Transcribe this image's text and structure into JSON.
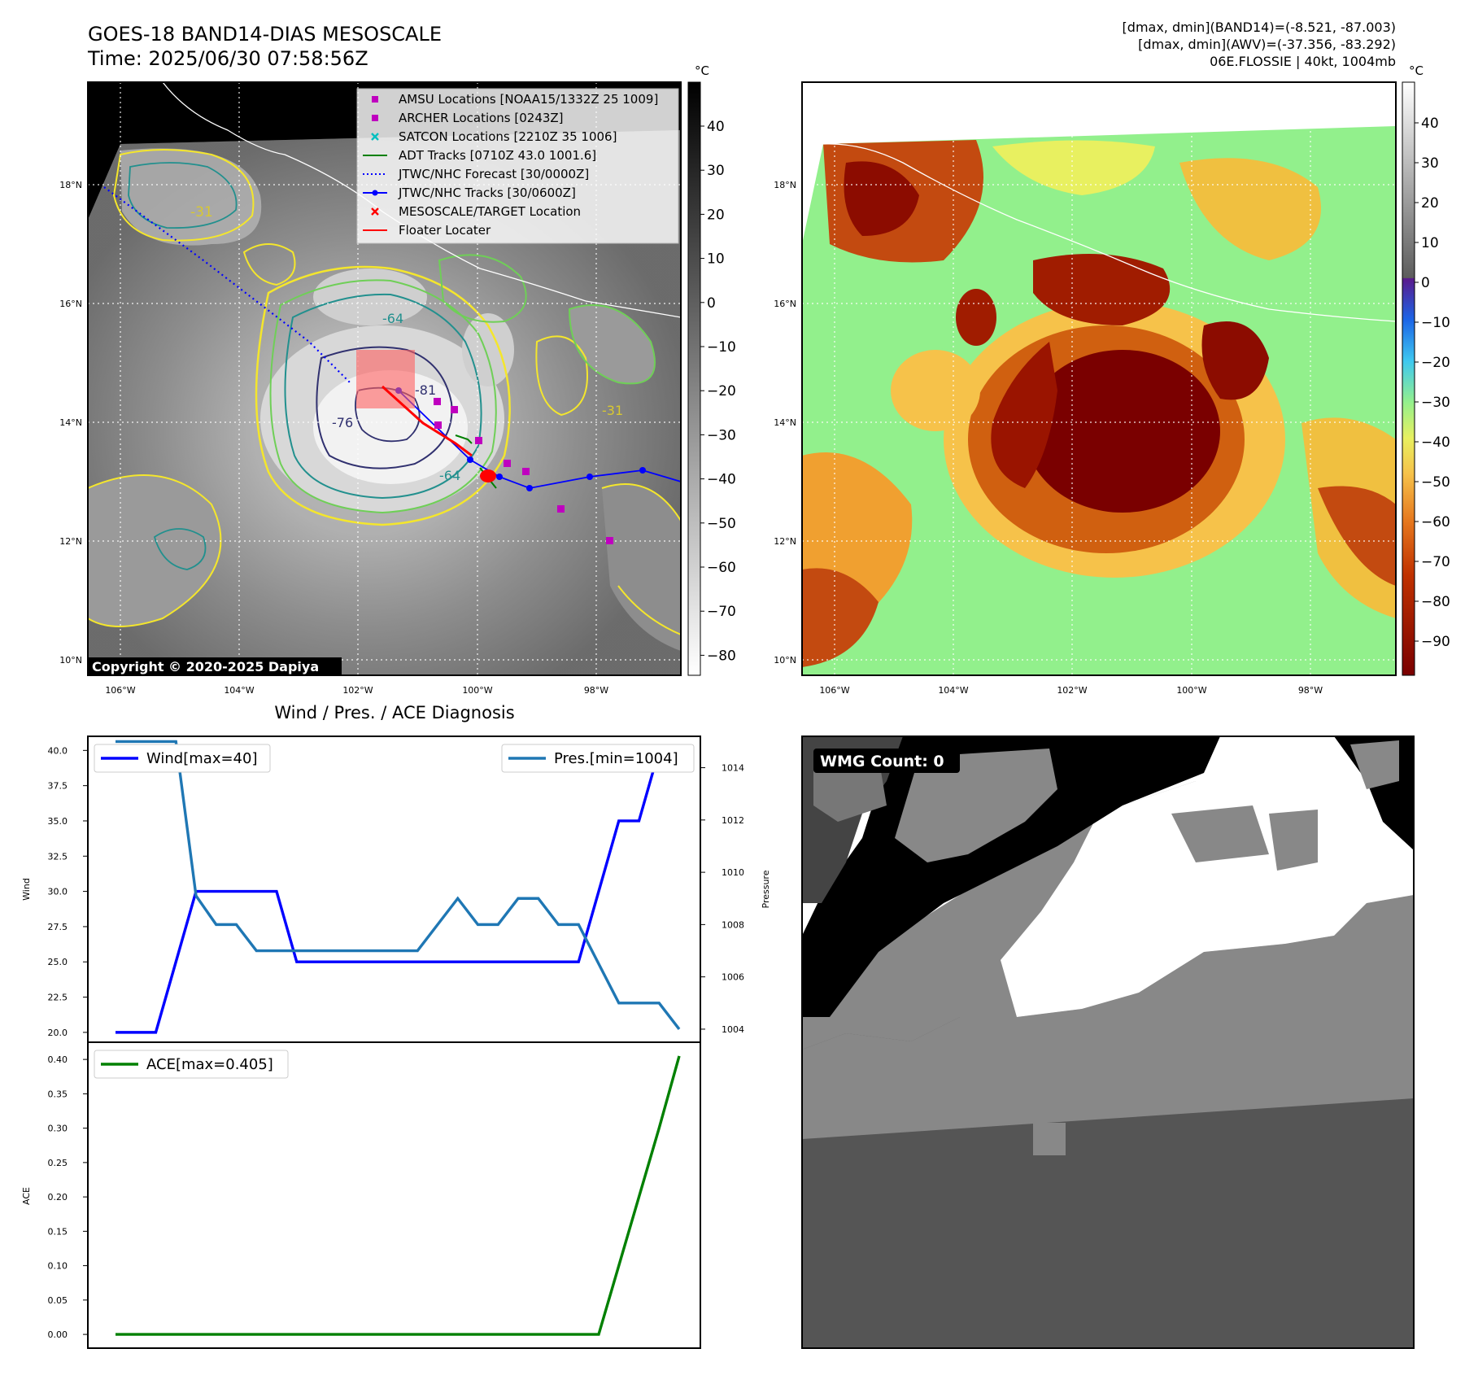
{
  "header": {
    "title_line1": "GOES-18 BAND14-DIAS MESOSCALE",
    "title_line2": "Time: 2025/06/30 07:58:56Z",
    "info_line1": "[dmax, dmin](BAND14)=(-8.521, -87.003)",
    "info_line2": "[dmax, dmin](AWV)=(-37.356, -83.292)",
    "info_line3": "06E.FLOSSIE | 40kt, 1004mb"
  },
  "colors": {
    "wind": "#0000ff",
    "pressure": "#1f77b4",
    "ace": "#008000",
    "amsu": "#bf00bf",
    "satcon": "#00bfbf",
    "adt": "#008000",
    "track": "#0000ff",
    "floater": "#ff0000",
    "contour_yellow": "#f4e62c",
    "contour_green": "#6fcf57",
    "contour_teal": "#22908e",
    "contour_navy": "#30306f"
  },
  "map_labels": {
    "lat": [
      "18°N",
      "16°N",
      "14°N",
      "12°N",
      "10°N"
    ],
    "lon": [
      "106°W",
      "104°W",
      "102°W",
      "100°W",
      "98°W"
    ],
    "copyright": "Copyright © 2020-2025 Dapiya",
    "contour_labels": [
      "-31",
      "-64",
      "-76",
      "-81",
      "-31",
      "-64"
    ]
  },
  "legend": [
    {
      "label": "AMSU Locations [NOAA15/1332Z 25 1009]",
      "marker": "square",
      "color": "#bf00bf"
    },
    {
      "label": "ARCHER Locations [0243Z]",
      "marker": "square",
      "color": "#bf00bf"
    },
    {
      "label": "SATCON Locations [2210Z 35 1006]",
      "marker": "x",
      "color": "#00bfbf"
    },
    {
      "label": "ADT Tracks [0710Z 43.0 1001.6]",
      "marker": "line",
      "color": "#008000"
    },
    {
      "label": "JTWC/NHC Forecast [30/0000Z]",
      "marker": "dotted",
      "color": "#0000ff"
    },
    {
      "label": "JTWC/NHC Tracks [30/0600Z]",
      "marker": "dotline",
      "color": "#0000ff"
    },
    {
      "label": "MESOSCALE/TARGET Location",
      "marker": "x",
      "color": "#ff0000"
    },
    {
      "label": "Floater Locater",
      "marker": "line",
      "color": "#ff0000"
    }
  ],
  "colorbars": {
    "gray": {
      "unit": "°C",
      "ticks": [
        "40",
        "30",
        "20",
        "10",
        "0",
        "−10",
        "−20",
        "−30",
        "−40",
        "−50",
        "−60",
        "−70",
        "−80"
      ]
    },
    "color": {
      "unit": "°C",
      "ticks": [
        "40",
        "30",
        "20",
        "10",
        "0",
        "−10",
        "−20",
        "−30",
        "−40",
        "−50",
        "−60",
        "−70",
        "−80",
        "−90"
      ]
    }
  },
  "wmg": {
    "label": "WMG Count: 0"
  },
  "chart_data": [
    {
      "type": "line",
      "title": "Wind / Pres. / ACE Diagnosis",
      "ylabel": "Wind",
      "ylabel_right": "Pressure",
      "x": [
        0,
        1,
        2,
        3,
        4,
        5,
        6,
        7,
        8,
        9,
        10,
        11,
        12,
        13,
        14,
        15,
        16,
        17,
        18,
        19,
        20,
        21,
        22,
        23,
        24,
        25,
        26,
        27,
        28
      ],
      "ylim": [
        19.3,
        41.0
      ],
      "ylim_right": [
        1003.5,
        1015.2
      ],
      "yticks": [
        "20.0",
        "22.5",
        "25.0",
        "27.5",
        "30.0",
        "32.5",
        "35.0",
        "37.5",
        "40.0"
      ],
      "yticks_right": [
        "1004",
        "1006",
        "1008",
        "1010",
        "1012",
        "1014"
      ],
      "series": [
        {
          "name": "Wind[max=40]",
          "axis": "left",
          "values": [
            20,
            20,
            20,
            25,
            30,
            30,
            30,
            30,
            30,
            25,
            25,
            25,
            25,
            25,
            25,
            25,
            25,
            25,
            25,
            25,
            25,
            25,
            25,
            25,
            30,
            35,
            35,
            40,
            40
          ]
        },
        {
          "name": "Pres.[min=1004]",
          "axis": "right",
          "values": [
            1015,
            1015,
            1015,
            1015,
            1009.1,
            1008,
            1008,
            1007,
            1007,
            1007,
            1007,
            1007,
            1007,
            1007,
            1007,
            1007,
            1008,
            1009,
            1008,
            1008,
            1009,
            1009,
            1008,
            1008,
            1006.5,
            1005,
            1005,
            1005,
            1004
          ]
        }
      ],
      "legend": "top-left / top-right"
    },
    {
      "type": "line",
      "ylabel": "ACE",
      "x": [
        0,
        1,
        2,
        3,
        4,
        5,
        6,
        7,
        8,
        9,
        10,
        11,
        12,
        13,
        14,
        15,
        16,
        17,
        18,
        19,
        20,
        21,
        22,
        23,
        24,
        25,
        26,
        27,
        28
      ],
      "ylim": [
        -0.02,
        0.425
      ],
      "yticks": [
        "0.00",
        "0.05",
        "0.10",
        "0.15",
        "0.20",
        "0.25",
        "0.30",
        "0.35",
        "0.40"
      ],
      "series": [
        {
          "name": "ACE[max=0.405]",
          "values": [
            0,
            0,
            0,
            0,
            0,
            0,
            0,
            0,
            0,
            0,
            0,
            0,
            0,
            0,
            0,
            0,
            0,
            0,
            0,
            0,
            0,
            0,
            0,
            0,
            0,
            0.1,
            0.2,
            0.3,
            0.405
          ]
        }
      ],
      "legend": "top-left"
    }
  ]
}
